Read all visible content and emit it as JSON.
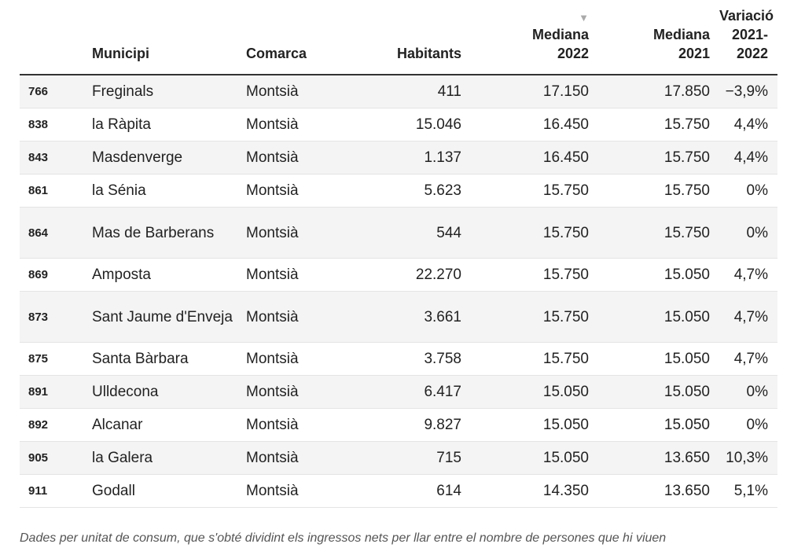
{
  "headers": {
    "rank": "",
    "municipi": "Municipi",
    "comarca": "Comarca",
    "habitants": "Habitants",
    "mediana_2022": "Mediana 2022",
    "mediana_2021": "Mediana 2021",
    "variacio_line1": "Variació",
    "variacio_line2": "2021-",
    "variacio_line3": "2022",
    "sort_indicator": "▼"
  },
  "rows": [
    {
      "rank": "766",
      "municipi": "Freginals",
      "comarca": "Montsià",
      "habitants": "411",
      "mediana_2022": "17.150",
      "mediana_2021": "17.850",
      "variacio": "−3,9%"
    },
    {
      "rank": "838",
      "municipi": "la Ràpita",
      "comarca": "Montsià",
      "habitants": "15.046",
      "mediana_2022": "16.450",
      "mediana_2021": "15.750",
      "variacio": "4,4%"
    },
    {
      "rank": "843",
      "municipi": "Masdenverge",
      "comarca": "Montsià",
      "habitants": "1.137",
      "mediana_2022": "16.450",
      "mediana_2021": "15.750",
      "variacio": "4,4%"
    },
    {
      "rank": "861",
      "municipi": "la Sénia",
      "comarca": "Montsià",
      "habitants": "5.623",
      "mediana_2022": "15.750",
      "mediana_2021": "15.750",
      "variacio": "0%"
    },
    {
      "rank": "864",
      "municipi": "Mas de Barberans",
      "comarca": "Montsià",
      "habitants": "544",
      "mediana_2022": "15.750",
      "mediana_2021": "15.750",
      "variacio": "0%"
    },
    {
      "rank": "869",
      "municipi": "Amposta",
      "comarca": "Montsià",
      "habitants": "22.270",
      "mediana_2022": "15.750",
      "mediana_2021": "15.050",
      "variacio": "4,7%"
    },
    {
      "rank": "873",
      "municipi": "Sant Jaume d'Enveja",
      "comarca": "Montsià",
      "habitants": "3.661",
      "mediana_2022": "15.750",
      "mediana_2021": "15.050",
      "variacio": "4,7%"
    },
    {
      "rank": "875",
      "municipi": "Santa Bàrbara",
      "comarca": "Montsià",
      "habitants": "3.758",
      "mediana_2022": "15.750",
      "mediana_2021": "15.050",
      "variacio": "4,7%"
    },
    {
      "rank": "891",
      "municipi": "Ulldecona",
      "comarca": "Montsià",
      "habitants": "6.417",
      "mediana_2022": "15.050",
      "mediana_2021": "15.050",
      "variacio": "0%"
    },
    {
      "rank": "892",
      "municipi": "Alcanar",
      "comarca": "Montsià",
      "habitants": "9.827",
      "mediana_2022": "15.050",
      "mediana_2021": "15.050",
      "variacio": "0%"
    },
    {
      "rank": "905",
      "municipi": "la Galera",
      "comarca": "Montsià",
      "habitants": "715",
      "mediana_2022": "15.050",
      "mediana_2021": "13.650",
      "variacio": "10,3%"
    },
    {
      "rank": "911",
      "municipi": "Godall",
      "comarca": "Montsià",
      "habitants": "614",
      "mediana_2022": "14.350",
      "mediana_2021": "13.650",
      "variacio": "5,1%"
    }
  ],
  "footnote": "Dades per unitat de consum, que s'obté dividint els ingressos nets per llar entre el nombre de persones que hi viuen"
}
